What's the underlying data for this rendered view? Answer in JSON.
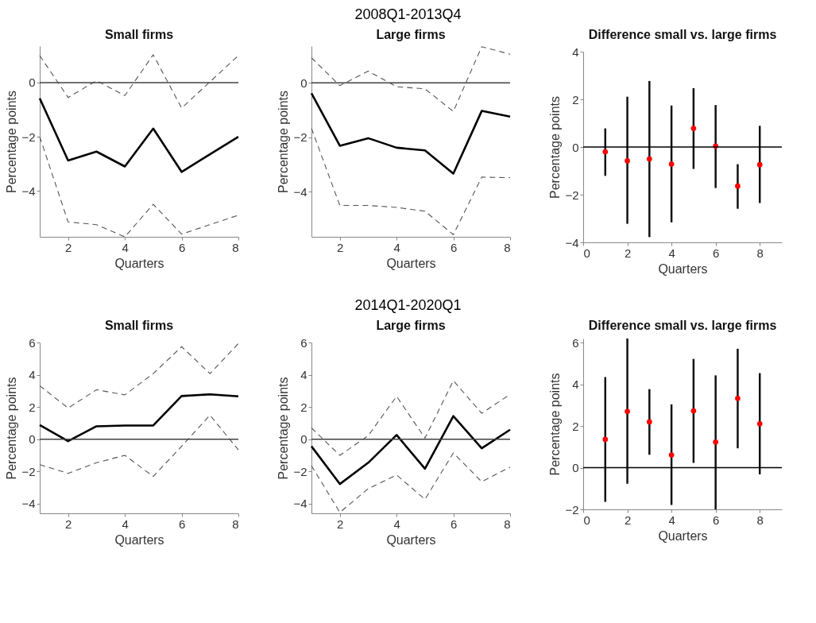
{
  "chart_data": [
    {
      "type": "line",
      "title": "Small firms",
      "xlabel": "Quarters",
      "ylabel": "Percentage points",
      "x": [
        1,
        2,
        3,
        4,
        5,
        6,
        7,
        8
      ],
      "xlim": [
        1,
        8
      ],
      "xticks": [
        2,
        4,
        6,
        8
      ],
      "ylim": [
        -5.7,
        1.35
      ],
      "yticks": [
        -4,
        -2,
        0
      ],
      "series": [
        {
          "color": "#000000",
          "line_style": "solid",
          "values": [
            -0.58,
            -2.88,
            -2.55,
            -3.1,
            -1.7,
            -3.3,
            -2.65,
            -2.0
          ]
        },
        {
          "color": "#555555",
          "line_style": "dashed",
          "values": [
            1.0,
            -0.55,
            0.07,
            -0.48,
            1.03,
            -0.94,
            0.03,
            1.0
          ]
        },
        {
          "color": "#555555",
          "line_style": "dashed",
          "values": [
            -2.0,
            -5.15,
            -5.25,
            -5.7,
            -4.5,
            -5.6,
            -5.25,
            -4.9
          ]
        }
      ],
      "ref_lines": [
        {
          "axis": "y",
          "value": 0,
          "color": "#404040"
        }
      ]
    },
    {
      "type": "line",
      "title": "Large firms",
      "xlabel": "Quarters",
      "ylabel": "Percentage points",
      "annotations": [
        "2008Q1-2013Q4"
      ],
      "x": [
        1,
        2,
        3,
        4,
        5,
        6,
        7,
        8
      ],
      "xlim": [
        1,
        8
      ],
      "xticks": [
        2,
        4,
        6,
        8
      ],
      "ylim": [
        -5.65,
        1.35
      ],
      "yticks": [
        -4,
        -2,
        0
      ],
      "series": [
        {
          "color": "#000000",
          "line_style": "solid",
          "values": [
            -0.38,
            -2.31,
            -2.03,
            -2.38,
            -2.48,
            -3.33,
            -1.03,
            -1.24
          ]
        },
        {
          "color": "#555555",
          "line_style": "dashed",
          "values": [
            0.92,
            -0.1,
            0.43,
            -0.14,
            -0.22,
            -1.05,
            1.33,
            1.05
          ]
        },
        {
          "color": "#555555",
          "line_style": "dashed",
          "values": [
            -1.67,
            -4.5,
            -4.5,
            -4.57,
            -4.71,
            -5.57,
            -3.46,
            -3.48
          ]
        }
      ],
      "ref_lines": [
        {
          "axis": "y",
          "value": 0,
          "color": "#404040"
        }
      ]
    },
    {
      "type": "scatter",
      "title": "Difference small vs. large firms",
      "xlabel": "Quarters",
      "ylabel": "Percentage points",
      "x": [
        1,
        2,
        3,
        4,
        5,
        6,
        7,
        8
      ],
      "xlim": [
        0,
        9
      ],
      "xticks": [
        0,
        2,
        4,
        6,
        8
      ],
      "ylim": [
        -4,
        4
      ],
      "yticks": [
        -4,
        -2,
        0,
        2,
        4
      ],
      "marker": "circle",
      "series": [
        {
          "color": "#ff0000",
          "values": [
            -0.2,
            -0.58,
            -0.5,
            -0.72,
            0.78,
            0.04,
            -1.64,
            -0.74
          ],
          "errors": [
            [
              -1.21,
              0.78
            ],
            [
              -3.22,
              2.11
            ],
            [
              -3.78,
              2.77
            ],
            [
              -3.16,
              1.74
            ],
            [
              -0.92,
              2.47
            ],
            [
              -1.72,
              1.76
            ],
            [
              -2.59,
              -0.72
            ],
            [
              -2.35,
              0.89
            ]
          ]
        }
      ],
      "ref_lines": [
        {
          "axis": "y",
          "value": 0,
          "color": "#000000"
        }
      ]
    },
    {
      "type": "line",
      "title": "Small firms",
      "xlabel": "Quarters",
      "ylabel": "Percentage points",
      "x": [
        1,
        2,
        3,
        4,
        5,
        6,
        7,
        8
      ],
      "xlim": [
        1,
        8
      ],
      "xticks": [
        2,
        4,
        6,
        8
      ],
      "ylim": [
        -4.6,
        6
      ],
      "yticks": [
        -4,
        -2,
        0,
        2,
        4,
        6
      ],
      "series": [
        {
          "color": "#000000",
          "line_style": "solid",
          "values": [
            0.88,
            -0.12,
            0.8,
            0.85,
            0.85,
            2.68,
            2.78,
            2.66
          ]
        },
        {
          "color": "#555555",
          "line_style": "dashed",
          "values": [
            3.32,
            1.93,
            3.07,
            2.75,
            4.07,
            5.74,
            4.07,
            5.93
          ]
        },
        {
          "color": "#555555",
          "line_style": "dashed",
          "values": [
            -1.58,
            -2.12,
            -1.46,
            -1.0,
            -2.31,
            -0.44,
            1.49,
            -0.66
          ]
        }
      ],
      "ref_lines": [
        {
          "axis": "y",
          "value": 0,
          "color": "#404040"
        }
      ]
    },
    {
      "type": "line",
      "title": "Large firms",
      "xlabel": "Quarters",
      "ylabel": "Percentage points",
      "annotations": [
        "2014Q1-2020Q1"
      ],
      "x": [
        1,
        2,
        3,
        4,
        5,
        6,
        7,
        8
      ],
      "xlim": [
        1,
        8
      ],
      "xticks": [
        2,
        4,
        6,
        8
      ],
      "ylim": [
        -4.6,
        6
      ],
      "yticks": [
        -4,
        -2,
        0,
        2,
        4,
        6
      ],
      "series": [
        {
          "color": "#000000",
          "line_style": "solid",
          "values": [
            -0.44,
            -2.78,
            -1.46,
            0.26,
            -1.83,
            1.43,
            -0.56,
            0.59
          ]
        },
        {
          "color": "#555555",
          "line_style": "dashed",
          "values": [
            0.7,
            -1.0,
            0.22,
            2.66,
            0.07,
            3.63,
            1.61,
            2.78
          ]
        },
        {
          "color": "#555555",
          "line_style": "dashed",
          "values": [
            -1.64,
            -4.54,
            -3.07,
            -2.22,
            -3.73,
            -0.85,
            -2.64,
            -1.73
          ]
        }
      ],
      "ref_lines": [
        {
          "axis": "y",
          "value": 0,
          "color": "#404040"
        }
      ]
    },
    {
      "type": "scatter",
      "title": "Difference small vs. large firms",
      "xlabel": "Quarters",
      "ylabel": "Percentage points",
      "x": [
        1,
        2,
        3,
        4,
        5,
        6,
        7,
        8
      ],
      "xlim": [
        0,
        9
      ],
      "xticks": [
        0,
        2,
        4,
        6,
        8
      ],
      "ylim": [
        -2,
        6.2
      ],
      "yticks": [
        -2,
        0,
        2,
        4,
        6
      ],
      "marker": "circle",
      "series": [
        {
          "color": "#ff0000",
          "values": [
            1.36,
            2.7,
            2.2,
            0.61,
            2.73,
            1.23,
            3.33,
            2.11
          ],
          "errors": [
            [
              -1.64,
              4.35
            ],
            [
              -0.77,
              6.2
            ],
            [
              0.62,
              3.77
            ],
            [
              -1.79,
              3.04
            ],
            [
              0.23,
              5.22
            ],
            [
              -2.0,
              4.43
            ],
            [
              0.93,
              5.71
            ],
            [
              -0.32,
              4.54
            ]
          ]
        }
      ],
      "ref_lines": [
        {
          "axis": "y",
          "value": 0,
          "color": "#000000"
        }
      ]
    }
  ]
}
